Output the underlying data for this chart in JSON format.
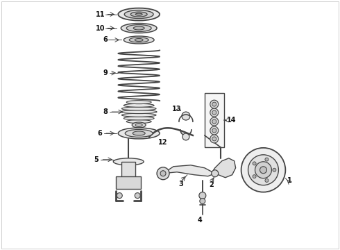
{
  "bg_color": "#ffffff",
  "lc": "#444444",
  "fig_width": 4.9,
  "fig_height": 3.6,
  "dpi": 100,
  "border_color": "#aaaaaa"
}
